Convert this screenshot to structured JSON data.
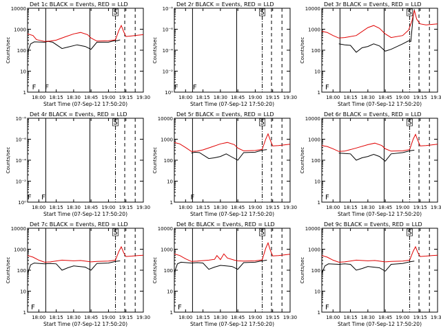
{
  "chart_data": [
    {
      "type": "line",
      "id": "1",
      "scale": "log",
      "title": "Det 1c BLACK = Events, RED = LLD",
      "xlabel": "Start Time (07-Sep-12 17:50:20)",
      "ylabel": "Counts/sec",
      "xlim": [
        "17:50:20",
        "19:30"
      ],
      "xtick_labels": [
        "18:00",
        "18:15",
        "18:30",
        "18:45",
        "19:00",
        "19:15",
        "19:30"
      ],
      "ytick_labels": [
        "1",
        "10",
        "100",
        "1000",
        "10000"
      ],
      "ylim": [
        1,
        12000
      ],
      "markers": [
        {
          "label": "F",
          "time": "17:56"
        },
        {
          "label": "F",
          "time": "18:07"
        },
        {
          "label": "S",
          "time": "19:06"
        }
      ],
      "series": [
        {
          "color": "#000000",
          "x": [
            "17:50:20",
            "17:53",
            "17:56",
            "18:05",
            "18:08",
            "18:12",
            "18:20",
            "18:25",
            "18:33",
            "18:40",
            "18:45",
            "18:50",
            "19:00",
            "19:06",
            "19:07",
            "19:10"
          ],
          "values": [
            80,
            200,
            250,
            240,
            260,
            240,
            120,
            140,
            180,
            150,
            110,
            240,
            240,
            290,
            280,
            310
          ]
        },
        {
          "color": "#e00000",
          "x": [
            "17:50:20",
            "17:55",
            "17:58",
            "18:05",
            "18:10",
            "18:15",
            "18:22",
            "18:30",
            "18:36",
            "18:42",
            "18:45",
            "18:50",
            "19:00",
            "19:06",
            "19:09",
            "19:11",
            "19:13",
            "19:15",
            "19:20",
            "19:25",
            "19:30"
          ],
          "values": [
            600,
            500,
            320,
            260,
            270,
            300,
            420,
            600,
            700,
            550,
            380,
            270,
            280,
            310,
            900,
            1500,
            800,
            450,
            480,
            520,
            550
          ]
        }
      ]
    },
    {
      "type": "line",
      "id": "2",
      "scale": "log",
      "title": "Det 2r BLACK = Events, RED = LLD",
      "xlabel": "Start Time (07-Sep-12 17:50:20)",
      "ylabel": "Counts/sec",
      "xlim": [
        "17:50:20",
        "19:30"
      ],
      "xtick_labels": [
        "18:00",
        "18:15",
        "18:30",
        "18:45",
        "19:00",
        "19:15",
        "19:30"
      ],
      "ytick_labels": [
        "10⁰",
        "10⁻²",
        "10⁻⁴",
        "10⁻⁶",
        "10⁻⁸"
      ],
      "markers": [
        {
          "label": "F",
          "time": "17:52"
        },
        {
          "label": "F",
          "time": "18:08"
        },
        {
          "label": "S",
          "time": "19:06"
        }
      ],
      "series": []
    },
    {
      "type": "line",
      "id": "3",
      "scale": "log",
      "title": "Det 3r BLACK = Events, RED = LLD",
      "xlabel": "Start Time (07-Sep-12 17:50:20)",
      "ylabel": "Counts/sec",
      "xlim": [
        "17:50:20",
        "19:30"
      ],
      "xtick_labels": [
        "18:00",
        "18:15",
        "18:30",
        "18:45",
        "19:00",
        "19:15",
        "19:30"
      ],
      "ytick_labels": [
        "1",
        "10",
        "100",
        "1000",
        "10000"
      ],
      "ylim": [
        1,
        12000
      ],
      "markers": [
        {
          "label": "F",
          "time": "17:55"
        },
        {
          "label": "S",
          "time": "19:06"
        }
      ],
      "series": [
        {
          "color": "#000000",
          "x": [
            "18:05",
            "18:10",
            "18:15",
            "18:20",
            "18:25",
            "18:30",
            "18:35",
            "18:40",
            "18:45",
            "18:50",
            "19:00",
            "19:05",
            "19:07",
            "19:09",
            "19:10"
          ],
          "values": [
            200,
            180,
            170,
            80,
            130,
            150,
            200,
            160,
            90,
            110,
            200,
            280,
            260,
            4000,
            9000
          ]
        },
        {
          "color": "#e00000",
          "x": [
            "17:50:20",
            "17:55",
            "18:00",
            "18:05",
            "18:10",
            "18:20",
            "18:30",
            "18:35",
            "18:40",
            "18:45",
            "18:50",
            "19:00",
            "19:05",
            "19:08",
            "19:10",
            "19:12",
            "19:15",
            "19:20",
            "19:25",
            "19:30"
          ],
          "values": [
            800,
            700,
            500,
            380,
            400,
            500,
            1200,
            1500,
            1100,
            600,
            400,
            500,
            900,
            2500,
            8000,
            3000,
            1800,
            1600,
            1700,
            1800
          ]
        }
      ]
    },
    {
      "type": "line",
      "id": "4",
      "scale": "log",
      "title": "Det 4r BLACK = Events, RED = LLD",
      "xlabel": "Start Time (07-Sep-12 17:50:20)",
      "ylabel": "Counts/sec",
      "xlim": [
        "17:50:20",
        "19:30"
      ],
      "xtick_labels": [
        "18:00",
        "18:15",
        "18:30",
        "18:45",
        "19:00",
        "19:15",
        "19:30"
      ],
      "ytick_labels": [
        "10⁰",
        "10⁻²",
        "10⁻⁴",
        "10⁻⁶",
        "10⁻⁸"
      ],
      "markers": [
        {
          "label": "F",
          "time": "17:52"
        },
        {
          "label": "F",
          "time": "18:04"
        },
        {
          "label": "S",
          "time": "19:06"
        }
      ],
      "series": []
    },
    {
      "type": "line",
      "id": "5",
      "scale": "log",
      "title": "Det 5r BLACK = Events, RED = LLD",
      "xlabel": "Start Time (07-Sep-12 17:50:20)",
      "ylabel": "Counts/sec",
      "xlim": [
        "17:50:20",
        "19:30"
      ],
      "xtick_labels": [
        "18:00",
        "18:15",
        "18:30",
        "18:45",
        "19:00",
        "19:15",
        "19:30"
      ],
      "ytick_labels": [
        "1",
        "10",
        "100",
        "1000",
        "10000"
      ],
      "ylim": [
        1,
        12000
      ],
      "markers": [
        {
          "label": "F",
          "time": "18:06"
        },
        {
          "label": "S",
          "time": "19:06"
        }
      ],
      "series": [
        {
          "color": "#000000",
          "x": [
            "18:05",
            "18:08",
            "18:12",
            "18:20",
            "18:25",
            "18:30",
            "18:35",
            "18:40",
            "18:45",
            "18:50",
            "19:00",
            "19:06",
            "19:10"
          ],
          "values": [
            220,
            240,
            230,
            120,
            130,
            150,
            200,
            140,
            100,
            230,
            240,
            300,
            320
          ]
        },
        {
          "color": "#e00000",
          "x": [
            "17:50:20",
            "17:55",
            "18:00",
            "18:05",
            "18:10",
            "18:15",
            "18:22",
            "18:30",
            "18:36",
            "18:42",
            "18:45",
            "18:50",
            "19:00",
            "19:06",
            "19:09",
            "19:11",
            "19:13",
            "19:15",
            "19:20",
            "19:25",
            "19:30"
          ],
          "values": [
            700,
            600,
            400,
            260,
            270,
            310,
            420,
            600,
            700,
            550,
            380,
            280,
            290,
            330,
            1000,
            1800,
            900,
            480,
            500,
            540,
            580
          ]
        }
      ]
    },
    {
      "type": "line",
      "id": "6",
      "scale": "log",
      "title": "Det 6r BLACK = Events, RED = LLD",
      "xlabel": "Start Time (07-Sep-12 17:50:20)",
      "ylabel": "Counts/sec",
      "xlim": [
        "17:50:20",
        "19:30"
      ],
      "xtick_labels": [
        "18:00",
        "18:15",
        "18:30",
        "18:45",
        "19:00",
        "19:15",
        "19:30"
      ],
      "ytick_labels": [
        "1",
        "10",
        "100",
        "1000",
        "10000"
      ],
      "ylim": [
        1,
        12000
      ],
      "markers": [
        {
          "label": "F",
          "time": "17:55"
        },
        {
          "label": "S",
          "time": "19:06"
        }
      ],
      "series": [
        {
          "color": "#000000",
          "x": [
            "18:05",
            "18:10",
            "18:15",
            "18:20",
            "18:25",
            "18:30",
            "18:35",
            "18:40",
            "18:45",
            "18:50",
            "19:00",
            "19:06",
            "19:10"
          ],
          "values": [
            220,
            210,
            200,
            100,
            130,
            150,
            190,
            150,
            90,
            200,
            230,
            280,
            300
          ]
        },
        {
          "color": "#e00000",
          "x": [
            "17:50:20",
            "17:55",
            "18:00",
            "18:05",
            "18:10",
            "18:20",
            "18:30",
            "18:36",
            "18:42",
            "18:45",
            "18:50",
            "19:00",
            "19:06",
            "19:09",
            "19:11",
            "19:13",
            "19:15",
            "19:20",
            "19:25",
            "19:30"
          ],
          "values": [
            500,
            450,
            350,
            260,
            270,
            380,
            550,
            650,
            500,
            350,
            270,
            280,
            320,
            1000,
            1700,
            900,
            480,
            500,
            540,
            580
          ]
        }
      ]
    },
    {
      "type": "line",
      "id": "7",
      "scale": "log",
      "title": "Det 7c BLACK = Events, RED = LLD",
      "xlabel": "Start Time (07-Sep-12 17:50:20)",
      "ylabel": "Counts/sec",
      "xlim": [
        "17:50:20",
        "19:30"
      ],
      "xtick_labels": [
        "18:00",
        "18:15",
        "18:30",
        "18:45",
        "19:00",
        "19:15",
        "19:30"
      ],
      "ytick_labels": [
        "1",
        "10",
        "100",
        "1000",
        "10000"
      ],
      "ylim": [
        1,
        12000
      ],
      "markers": [
        {
          "label": "F",
          "time": "17:55"
        },
        {
          "label": "S",
          "time": "19:06"
        }
      ],
      "series": [
        {
          "color": "#000000",
          "x": [
            "17:50:20",
            "17:53",
            "17:56",
            "18:05",
            "18:10",
            "18:15",
            "18:20",
            "18:25",
            "18:30",
            "18:40",
            "18:45",
            "18:50",
            "19:00",
            "19:06",
            "19:10"
          ],
          "values": [
            70,
            180,
            220,
            200,
            210,
            200,
            100,
            130,
            160,
            140,
            100,
            210,
            220,
            260,
            280
          ]
        },
        {
          "color": "#e00000",
          "x": [
            "17:50:20",
            "17:55",
            "18:00",
            "18:05",
            "18:10",
            "18:20",
            "18:30",
            "18:36",
            "18:42",
            "18:45",
            "18:50",
            "19:00",
            "19:06",
            "19:09",
            "19:11",
            "19:13",
            "19:15",
            "19:20",
            "19:25",
            "19:30"
          ],
          "values": [
            500,
            420,
            300,
            240,
            250,
            300,
            280,
            290,
            260,
            250,
            260,
            270,
            300,
            800,
            1300,
            700,
            450,
            470,
            500,
            520
          ]
        }
      ]
    },
    {
      "type": "line",
      "id": "8",
      "scale": "log",
      "title": "Det 8c BLACK = Events, RED = LLD",
      "xlabel": "Start Time (07-Sep-12 17:50:20)",
      "ylabel": "Counts/sec",
      "xlim": [
        "17:50:20",
        "19:30"
      ],
      "xtick_labels": [
        "18:00",
        "18:15",
        "18:30",
        "18:45",
        "19:00",
        "19:15",
        "19:30"
      ],
      "ytick_labels": [
        "1",
        "10",
        "100",
        "1000",
        "10000"
      ],
      "ylim": [
        1,
        12000
      ],
      "markers": [
        {
          "label": "F",
          "time": "17:55"
        },
        {
          "label": "S",
          "time": "19:06"
        }
      ],
      "series": [
        {
          "color": "#000000",
          "x": [
            "17:50:20",
            "17:53",
            "17:56",
            "18:05",
            "18:10",
            "18:15",
            "18:20",
            "18:25",
            "18:30",
            "18:35",
            "18:40",
            "18:45",
            "18:50",
            "19:00",
            "19:06",
            "19:10"
          ],
          "values": [
            80,
            200,
            240,
            220,
            230,
            220,
            110,
            140,
            170,
            160,
            150,
            110,
            230,
            240,
            280,
            300
          ]
        },
        {
          "color": "#e00000",
          "x": [
            "17:50:20",
            "17:55",
            "18:00",
            "18:05",
            "18:10",
            "18:20",
            "18:25",
            "18:27",
            "18:30",
            "18:33",
            "18:36",
            "18:42",
            "18:45",
            "18:50",
            "19:00",
            "19:06",
            "19:09",
            "19:11",
            "19:13",
            "19:15",
            "19:20",
            "19:25",
            "19:30"
          ],
          "values": [
            600,
            500,
            350,
            260,
            270,
            300,
            330,
            500,
            320,
            600,
            380,
            300,
            280,
            270,
            280,
            310,
            1100,
            2000,
            900,
            480,
            500,
            540,
            580
          ]
        }
      ]
    },
    {
      "type": "line",
      "id": "9",
      "scale": "log",
      "title": "Det 9c BLACK = Events, RED = LLD",
      "xlabel": "Start Time (07-Sep-12 17:50:20)",
      "ylabel": "Counts/sec",
      "xlim": [
        "17:50:20",
        "19:30"
      ],
      "xtick_labels": [
        "18:00",
        "18:15",
        "18:30",
        "18:45",
        "19:00",
        "19:15",
        "19:30"
      ],
      "ytick_labels": [
        "1",
        "10",
        "100",
        "1000",
        "10000"
      ],
      "ylim": [
        1,
        12000
      ],
      "markers": [
        {
          "label": "F",
          "time": "17:55"
        },
        {
          "label": "S",
          "time": "19:06"
        }
      ],
      "series": [
        {
          "color": "#000000",
          "x": [
            "17:50:20",
            "17:53",
            "17:56",
            "18:05",
            "18:10",
            "18:15",
            "18:20",
            "18:25",
            "18:30",
            "18:40",
            "18:45",
            "18:50",
            "19:00",
            "19:06",
            "19:10"
          ],
          "values": [
            70,
            160,
            200,
            190,
            200,
            190,
            100,
            120,
            150,
            130,
            90,
            190,
            210,
            250,
            270
          ]
        },
        {
          "color": "#e00000",
          "x": [
            "17:50:20",
            "17:55",
            "18:00",
            "18:05",
            "18:10",
            "18:20",
            "18:30",
            "18:36",
            "18:42",
            "18:45",
            "18:50",
            "19:00",
            "19:06",
            "19:09",
            "19:11",
            "19:13",
            "19:15",
            "19:20",
            "19:25",
            "19:30"
          ],
          "values": [
            500,
            420,
            300,
            240,
            250,
            300,
            280,
            290,
            260,
            250,
            260,
            270,
            300,
            800,
            1300,
            700,
            450,
            470,
            500,
            520
          ]
        }
      ]
    }
  ]
}
